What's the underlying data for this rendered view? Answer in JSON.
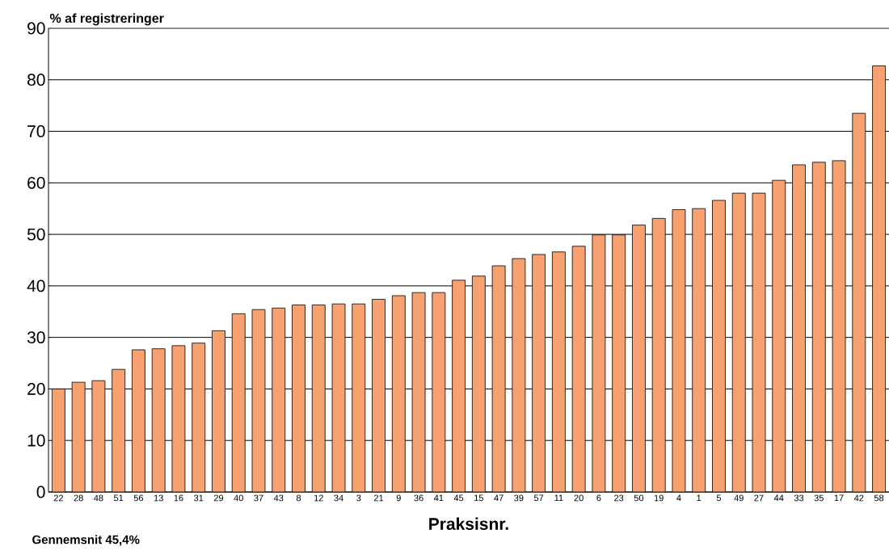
{
  "chart_data": {
    "type": "bar",
    "ylabel": "% af registreringer",
    "xlabel": "Praksisnr.",
    "categories": [
      "22",
      "28",
      "48",
      "51",
      "56",
      "13",
      "16",
      "31",
      "29",
      "40",
      "37",
      "43",
      "8",
      "12",
      "34",
      "3",
      "21",
      "9",
      "36",
      "41",
      "45",
      "15",
      "47",
      "39",
      "57",
      "11",
      "20",
      "6",
      "23",
      "50",
      "19",
      "4",
      "1",
      "5",
      "49",
      "27",
      "44",
      "33",
      "35",
      "17",
      "42",
      "58"
    ],
    "values": [
      20.0,
      21.3,
      21.6,
      23.8,
      27.6,
      27.8,
      28.4,
      28.9,
      31.3,
      34.6,
      35.4,
      35.7,
      36.3,
      36.3,
      36.5,
      36.5,
      37.4,
      38.1,
      38.7,
      38.7,
      41.1,
      41.9,
      43.9,
      45.3,
      46.1,
      46.6,
      47.7,
      49.9,
      49.9,
      51.8,
      53.1,
      54.8,
      55.0,
      56.6,
      58.0,
      58.0,
      60.5,
      63.5,
      64.0,
      64.3,
      73.5,
      82.7
    ],
    "color": "#f7a070",
    "ylim": [
      0,
      90
    ],
    "yticks": [
      0,
      10,
      20,
      30,
      40,
      50,
      60,
      70,
      80,
      90
    ],
    "grid": "y",
    "annotations": [
      "Gennemsnit 45,4%"
    ]
  }
}
